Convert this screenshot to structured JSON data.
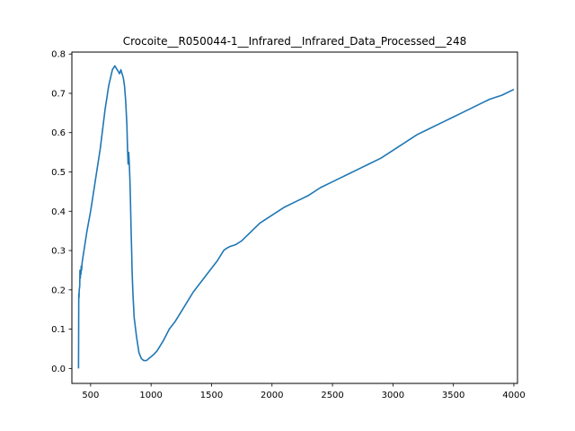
{
  "chart_data": {
    "type": "line",
    "title": "Crocoite__R050044-1__Infrared__Infrared_Data_Processed__248",
    "xlabel": "",
    "ylabel": "",
    "xlim": [
      345,
      4030
    ],
    "ylim": [
      -0.038,
      0.805
    ],
    "xticks": [
      500,
      1000,
      1500,
      2000,
      2500,
      3000,
      3500,
      4000
    ],
    "xtick_labels": [
      "500",
      "1000",
      "1500",
      "2000",
      "2500",
      "3000",
      "3500",
      "4000"
    ],
    "yticks": [
      0.0,
      0.1,
      0.2,
      0.3,
      0.4,
      0.5,
      0.6,
      0.7,
      0.8
    ],
    "ytick_labels": [
      "0.0",
      "0.1",
      "0.2",
      "0.3",
      "0.4",
      "0.5",
      "0.6",
      "0.7",
      "0.8"
    ],
    "grid": false,
    "line_color": "#1f77b4",
    "series": [
      {
        "x": [
          400,
          402,
          404,
          406,
          410,
          412,
          415,
          418,
          420,
          422,
          425,
          430,
          440,
          450,
          470,
          500,
          520,
          550,
          580,
          600,
          620,
          650,
          680,
          700,
          720,
          740,
          750,
          760,
          770,
          780,
          790,
          800,
          805,
          810,
          815,
          820,
          825,
          830,
          835,
          840,
          842,
          845,
          850,
          860,
          880,
          900,
          920,
          940,
          950,
          960,
          970,
          980,
          1000,
          1020,
          1050,
          1080,
          1100,
          1150,
          1200,
          1250,
          1300,
          1350,
          1400,
          1450,
          1500,
          1550,
          1600,
          1620,
          1650,
          1700,
          1750,
          1800,
          1850,
          1900,
          1950,
          2000,
          2100,
          2200,
          2300,
          2400,
          2500,
          2600,
          2700,
          2800,
          2900,
          3000,
          3100,
          3200,
          3300,
          3400,
          3500,
          3600,
          3700,
          3800,
          3900,
          4000
        ],
        "y": [
          0.0,
          0.19,
          0.18,
          0.2,
          0.21,
          0.25,
          0.23,
          0.25,
          0.24,
          0.26,
          0.25,
          0.27,
          0.29,
          0.31,
          0.35,
          0.4,
          0.44,
          0.5,
          0.56,
          0.61,
          0.66,
          0.72,
          0.76,
          0.77,
          0.76,
          0.75,
          0.76,
          0.75,
          0.74,
          0.72,
          0.68,
          0.62,
          0.56,
          0.52,
          0.55,
          0.52,
          0.48,
          0.42,
          0.35,
          0.29,
          0.26,
          0.23,
          0.19,
          0.13,
          0.08,
          0.04,
          0.025,
          0.02,
          0.02,
          0.02,
          0.022,
          0.025,
          0.03,
          0.035,
          0.045,
          0.06,
          0.07,
          0.1,
          0.12,
          0.145,
          0.17,
          0.195,
          0.215,
          0.235,
          0.255,
          0.275,
          0.3,
          0.305,
          0.31,
          0.315,
          0.325,
          0.34,
          0.355,
          0.37,
          0.38,
          0.39,
          0.41,
          0.425,
          0.44,
          0.46,
          0.475,
          0.49,
          0.505,
          0.52,
          0.535,
          0.555,
          0.575,
          0.595,
          0.61,
          0.625,
          0.64,
          0.655,
          0.67,
          0.685,
          0.695,
          0.71
        ]
      }
    ]
  }
}
